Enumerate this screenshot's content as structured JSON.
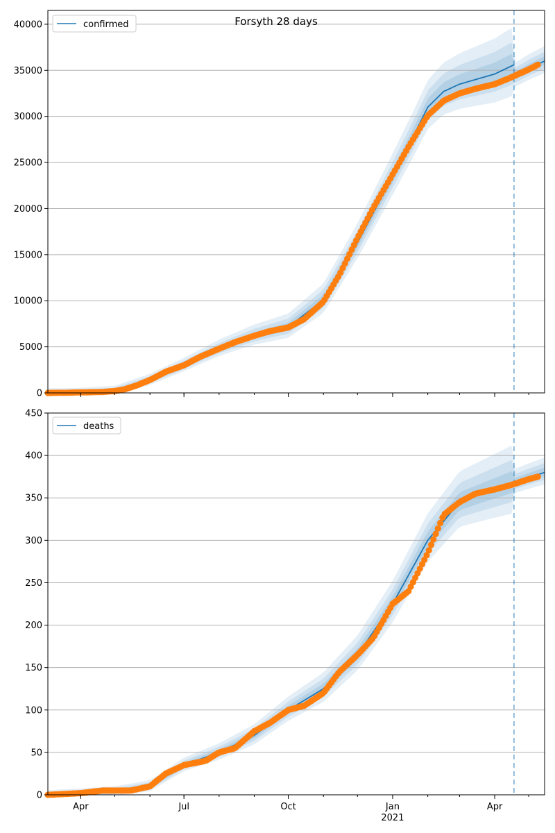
{
  "figure": {
    "title": "Forsyth 28 days"
  },
  "colors": {
    "observed": "#ff7f0e",
    "model": "#1f77b4",
    "band": "#1f77b4",
    "grid": "#b0b0b0",
    "vline": "#1f77b4"
  },
  "chart_data": [
    {
      "type": "line",
      "legend": "confirmed",
      "legend_position": "top-left",
      "grid": true,
      "ylim": [
        0,
        41500
      ],
      "yticks": [
        0,
        5000,
        10000,
        15000,
        20000,
        25000,
        30000,
        35000,
        40000
      ],
      "ytick_labels": [
        "0",
        "5000",
        "10000",
        "15000",
        "20000",
        "25000",
        "30000",
        "35000",
        "40000"
      ],
      "xlim": [
        "2020-03-03",
        "2021-05-15"
      ],
      "xticks": [
        {
          "date": "2020-04-01",
          "label": "Apr"
        },
        {
          "date": "2020-07-01",
          "label": "Jul"
        },
        {
          "date": "2020-10-01",
          "label": "Oct"
        },
        {
          "date": "2021-01-01",
          "label": "Jan",
          "sublabel": "2021"
        },
        {
          "date": "2021-04-01",
          "label": "Apr"
        }
      ],
      "forecast_start": "2021-04-18",
      "observed": {
        "x": [
          "2020-03-03",
          "2020-03-20",
          "2020-04-01",
          "2020-04-20",
          "2020-05-01",
          "2020-05-10",
          "2020-05-20",
          "2020-06-01",
          "2020-06-15",
          "2020-07-01",
          "2020-07-15",
          "2020-08-01",
          "2020-08-15",
          "2020-09-01",
          "2020-09-15",
          "2020-10-01",
          "2020-10-15",
          "2020-11-01",
          "2020-11-15",
          "2020-12-01",
          "2020-12-15",
          "2021-01-01",
          "2021-01-15",
          "2021-02-01",
          "2021-02-15",
          "2021-03-01",
          "2021-03-15",
          "2021-04-01",
          "2021-04-15",
          "2021-05-01",
          "2021-05-09"
        ],
        "y": [
          0,
          20,
          60,
          100,
          200,
          400,
          800,
          1400,
          2300,
          3000,
          3900,
          4800,
          5500,
          6200,
          6700,
          7100,
          8000,
          9900,
          12800,
          16800,
          20100,
          23700,
          26700,
          30100,
          31700,
          32500,
          33000,
          33500,
          34200,
          35100,
          35600
        ]
      },
      "model": {
        "x": [
          "2020-03-03",
          "2020-04-01",
          "2020-05-01",
          "2020-06-01",
          "2020-07-01",
          "2020-08-01",
          "2020-09-01",
          "2020-10-01",
          "2020-11-01",
          "2020-12-01",
          "2021-01-01",
          "2021-01-20",
          "2021-02-01",
          "2021-02-15",
          "2021-03-01",
          "2021-03-15",
          "2021-04-01",
          "2021-04-18"
        ],
        "y": [
          0,
          40,
          200,
          1400,
          3000,
          4800,
          6200,
          7150,
          10100,
          16300,
          23500,
          28000,
          31000,
          32700,
          33500,
          34000,
          34600,
          35600
        ]
      },
      "forecast": {
        "x": [
          "2021-04-18",
          "2021-05-01",
          "2021-05-15"
        ],
        "y": [
          34300,
          35200,
          36000
        ]
      }
    },
    {
      "type": "line",
      "legend": "deaths",
      "legend_position": "top-left",
      "grid": true,
      "ylim": [
        0,
        450
      ],
      "yticks": [
        0,
        50,
        100,
        150,
        200,
        250,
        300,
        350,
        400,
        450
      ],
      "ytick_labels": [
        "0",
        "50",
        "100",
        "150",
        "200",
        "250",
        "300",
        "350",
        "400",
        "450"
      ],
      "xlim": [
        "2020-03-03",
        "2021-05-15"
      ],
      "xticks": [
        {
          "date": "2020-04-01",
          "label": "Apr"
        },
        {
          "date": "2020-07-01",
          "label": "Jul"
        },
        {
          "date": "2020-10-01",
          "label": "Oct"
        },
        {
          "date": "2021-01-01",
          "label": "Jan",
          "sublabel": "2021"
        },
        {
          "date": "2021-04-01",
          "label": "Apr"
        }
      ],
      "forecast_start": "2021-04-18",
      "observed": {
        "x": [
          "2020-03-03",
          "2020-04-01",
          "2020-04-20",
          "2020-05-15",
          "2020-06-01",
          "2020-06-15",
          "2020-07-01",
          "2020-07-20",
          "2020-08-01",
          "2020-08-15",
          "2020-09-01",
          "2020-09-15",
          "2020-10-01",
          "2020-10-15",
          "2020-11-01",
          "2020-11-15",
          "2020-12-01",
          "2020-12-15",
          "2021-01-01",
          "2021-01-15",
          "2021-02-01",
          "2021-02-15",
          "2021-03-01",
          "2021-03-15",
          "2021-04-01",
          "2021-04-15",
          "2021-05-01",
          "2021-05-09"
        ],
        "y": [
          0,
          2,
          5,
          5,
          10,
          25,
          35,
          40,
          50,
          55,
          75,
          85,
          100,
          105,
          120,
          145,
          165,
          185,
          225,
          240,
          285,
          330,
          345,
          355,
          360,
          365,
          372,
          375
        ]
      },
      "model": {
        "x": [
          "2020-03-03",
          "2020-04-01",
          "2020-05-01",
          "2020-06-01",
          "2020-07-01",
          "2020-08-01",
          "2020-09-01",
          "2020-10-01",
          "2020-11-01",
          "2020-12-01",
          "2021-01-01",
          "2021-02-01",
          "2021-03-01",
          "2021-04-01",
          "2021-04-18"
        ],
        "y": [
          0,
          2,
          4,
          10,
          35,
          50,
          70,
          100,
          125,
          165,
          225,
          300,
          345,
          360,
          368
        ]
      },
      "forecast": {
        "x": [
          "2021-04-18",
          "2021-05-01",
          "2021-05-15"
        ],
        "y": [
          368,
          374,
          380
        ]
      }
    }
  ]
}
